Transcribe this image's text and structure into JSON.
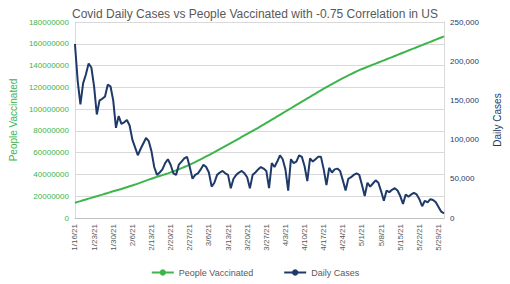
{
  "chart_data": {
    "type": "line",
    "title": "Covid Daily Cases vs People Vaccinated with -0.75 Correlation in US",
    "ylabel": "People Vaccinated",
    "y2label": "Daily Cases",
    "x": [
      "1/16/21",
      null,
      null,
      null,
      null,
      null,
      null,
      "1/23/21",
      null,
      null,
      null,
      null,
      null,
      null,
      "1/30/21",
      null,
      null,
      null,
      null,
      null,
      null,
      "2/6/21",
      null,
      null,
      null,
      null,
      null,
      null,
      "2/13/21",
      null,
      null,
      null,
      null,
      null,
      null,
      "2/20/21",
      null,
      null,
      null,
      null,
      null,
      null,
      "2/27/21",
      null,
      null,
      null,
      null,
      null,
      null,
      "3/6/21",
      null,
      null,
      null,
      null,
      null,
      null,
      "3/13/21",
      null,
      null,
      null,
      null,
      null,
      null,
      "3/20/21",
      null,
      null,
      null,
      null,
      null,
      null,
      "3/27/21",
      null,
      null,
      null,
      null,
      null,
      null,
      "4/3/21",
      null,
      null,
      null,
      null,
      null,
      null,
      "4/10/21",
      null,
      null,
      null,
      null,
      null,
      null,
      "4/17/21",
      null,
      null,
      null,
      null,
      null,
      null,
      "4/24/21",
      null,
      null,
      null,
      null,
      null,
      null,
      "5/1/21",
      null,
      null,
      null,
      null,
      null,
      null,
      "5/8/21",
      null,
      null,
      null,
      null,
      null,
      null,
      "5/15/21",
      null,
      null,
      null,
      null,
      null,
      null,
      "5/22/21",
      null,
      null,
      null,
      null,
      null,
      null,
      "5/29/21",
      null,
      null
    ],
    "series": [
      {
        "name": "People Vaccinated",
        "color": "#3db54a",
        "values": [
          14000000,
          14800000,
          15500000,
          16300000,
          17000000,
          17800000,
          18500000,
          19300000,
          20000000,
          20800000,
          21500000,
          22300000,
          23000000,
          23800000,
          24500000,
          25200000,
          25900000,
          26700000,
          27500000,
          28300000,
          29100000,
          29900000,
          30700000,
          31600000,
          32500000,
          33400000,
          34300000,
          35200000,
          36100000,
          37000000,
          37800000,
          38600000,
          39400000,
          40200000,
          41000000,
          41900000,
          42800000,
          43800000,
          44800000,
          45800000,
          46800000,
          47900000,
          49000000,
          50100000,
          51300000,
          52600000,
          53900000,
          55200000,
          56500000,
          57800000,
          59100000,
          60400000,
          61800000,
          63200000,
          64600000,
          66000000,
          67400000,
          68800000,
          70200000,
          71600000,
          73000000,
          74400000,
          75800000,
          77200000,
          78600000,
          80000000,
          81400000,
          82800000,
          84300000,
          85800000,
          87300000,
          88800000,
          90300000,
          91800000,
          93300000,
          94800000,
          96300000,
          97800000,
          99300000,
          100800000,
          102300000,
          103800000,
          105300000,
          106800000,
          108300000,
          109800000,
          111300000,
          112800000,
          114300000,
          115800000,
          117300000,
          118800000,
          120200000,
          121600000,
          123000000,
          124400000,
          125800000,
          127100000,
          128400000,
          129700000,
          131000000,
          132200000,
          133400000,
          134600000,
          135800000,
          136800000,
          137800000,
          138800000,
          139800000,
          140800000,
          141800000,
          142800000,
          143800000,
          144800000,
          145800000,
          146800000,
          147800000,
          148800000,
          149800000,
          150800000,
          151800000,
          152800000,
          153800000,
          154800000,
          155800000,
          156800000,
          157800000,
          158800000,
          159800000,
          160800000,
          161800000,
          162800000,
          163800000,
          164800000,
          165800000,
          166800000
        ]
      },
      {
        "name": "Daily Cases",
        "color": "#1f3a68",
        "axis": "y2",
        "values": [
          222000,
          175000,
          145000,
          172000,
          183000,
          197000,
          192000,
          168000,
          132000,
          150000,
          152000,
          155000,
          170000,
          168000,
          150000,
          115000,
          130000,
          120000,
          122000,
          125000,
          118000,
          100000,
          90000,
          80000,
          88000,
          95000,
          102000,
          98000,
          85000,
          65000,
          55000,
          58000,
          62000,
          70000,
          75000,
          68000,
          57000,
          55000,
          68000,
          72000,
          76000,
          78000,
          65000,
          50000,
          55000,
          57000,
          62000,
          68000,
          65000,
          58000,
          40000,
          45000,
          55000,
          58000,
          60000,
          57000,
          55000,
          38000,
          50000,
          55000,
          58000,
          60000,
          57000,
          52000,
          38000,
          55000,
          58000,
          62000,
          65000,
          63000,
          60000,
          38000,
          70000,
          65000,
          72000,
          80000,
          75000,
          62000,
          35000,
          75000,
          70000,
          72000,
          80000,
          78000,
          66000,
          47000,
          76000,
          72000,
          75000,
          78000,
          78000,
          62000,
          42000,
          64000,
          58000,
          62000,
          63000,
          60000,
          48000,
          35000,
          50000,
          52000,
          55000,
          57000,
          55000,
          42000,
          28000,
          45000,
          40000,
          44000,
          48000,
          45000,
          34000,
          22000,
          35000,
          33000,
          36000,
          38000,
          35000,
          28000,
          18000,
          30000,
          27000,
          30000,
          32000,
          30000,
          24000,
          15000,
          22000,
          20000,
          24000,
          23000,
          20000,
          14000,
          8000,
          6000
        ]
      }
    ],
    "ylim": [
      0,
      180000000
    ],
    "yticks": [
      0,
      20000000,
      40000000,
      60000000,
      80000000,
      100000000,
      120000000,
      140000000,
      160000000,
      180000000
    ],
    "y2lim": [
      0,
      250000
    ],
    "y2ticks": [
      0,
      {
        "value": 50000,
        "label": "50,000"
      },
      {
        "value": 100000,
        "label": "100,000"
      },
      {
        "value": 150000,
        "label": "150,000"
      },
      {
        "value": 200000,
        "label": "200,000"
      },
      {
        "value": 250000,
        "label": "250,000"
      }
    ],
    "grid": true,
    "legend": "bottom"
  }
}
